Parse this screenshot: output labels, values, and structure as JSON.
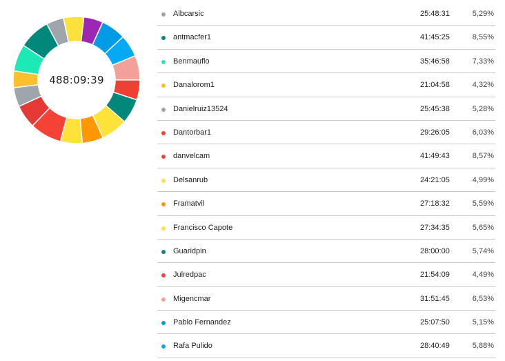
{
  "donut": {
    "center_label": "488:09:39"
  },
  "chart_data": {
    "type": "pie",
    "categories": [
      "Albcarsic",
      "antmacfer1",
      "Benmauflo",
      "Danalorom1",
      "Danielruiz13524",
      "Dantorbar1",
      "danvelcam",
      "Delsanrub",
      "Framatvil",
      "Francisco Capote",
      "Guaridpin",
      "Julredpac",
      "Migencmar",
      "Pablo Fernandez",
      "Rafa Pulido"
    ],
    "values": [
      5.29,
      8.55,
      7.33,
      4.32,
      5.28,
      6.03,
      8.57,
      4.99,
      5.59,
      5.65,
      5.74,
      4.49,
      6.53,
      5.15,
      5.88
    ]
  },
  "segments": [
    {
      "color": "#fbe13a",
      "percent": 5.5
    },
    {
      "color": "#9c27b0",
      "percent": 5.2
    },
    {
      "color": "#039be5",
      "percent": 6.7
    },
    {
      "color": "#03a9f4",
      "percent": 6.0
    },
    {
      "color": "#f4a09a",
      "percent": 6.6
    },
    {
      "color": "#ef4034",
      "percent": 5.4
    },
    {
      "color": "#00897b",
      "percent": 6.7
    },
    {
      "color": "#fde23a",
      "percent": 7.2
    },
    {
      "color": "#ff9800",
      "percent": 5.7
    },
    {
      "color": "#fde23a",
      "percent": 5.9
    },
    {
      "color": "#f44336",
      "percent": 8.6
    },
    {
      "color": "#e53935",
      "percent": 6.3
    },
    {
      "color": "#9ea6ab",
      "percent": 5.2
    },
    {
      "color": "#fbc02d",
      "percent": 4.5
    },
    {
      "color": "#1de9b6",
      "percent": 7.3
    },
    {
      "color": "#00897b",
      "percent": 8.5
    },
    {
      "color": "#9ea6ab",
      "percent": 4.7
    }
  ],
  "rows": [
    {
      "name": "Albcarsic",
      "time": "25:48:31",
      "percent": "5,29%",
      "color": "#9aa4aa"
    },
    {
      "name": "antmacfer1",
      "time": "41:45:25",
      "percent": "8,55%",
      "color": "#00897b"
    },
    {
      "name": "Benmauflo",
      "time": "35:46:58",
      "percent": "7,33%",
      "color": "#1de9b6"
    },
    {
      "name": "Danalorom1",
      "time": "21:04:58",
      "percent": "4,32%",
      "color": "#fbc02d"
    },
    {
      "name": "Danielruiz13524",
      "time": "25:45:38",
      "percent": "5,28%",
      "color": "#9aa4aa"
    },
    {
      "name": "Dantorbar1",
      "time": "29:26:05",
      "percent": "6,03%",
      "color": "#f44336"
    },
    {
      "name": "danvelcam",
      "time": "41:49:43",
      "percent": "8,57%",
      "color": "#f44336"
    },
    {
      "name": "Delsanrub",
      "time": "24:21:05",
      "percent": "4,99%",
      "color": "#fde23a"
    },
    {
      "name": "Framatvil",
      "time": "27:18:32",
      "percent": "5,59%",
      "color": "#ff9800"
    },
    {
      "name": "Francisco Capote",
      "time": "27:34:35",
      "percent": "5,65%",
      "color": "#fde23a"
    },
    {
      "name": "Guaridpin",
      "time": "28:00:00",
      "percent": "5,74%",
      "color": "#00897b"
    },
    {
      "name": "Julredpac",
      "time": "21:54:09",
      "percent": "4,49%",
      "color": "#f44336"
    },
    {
      "name": "Migencmar",
      "time": "31:51:45",
      "percent": "6,53%",
      "color": "#f4a09a"
    },
    {
      "name": "Pablo Fernandez",
      "time": "25:07:50",
      "percent": "5,15%",
      "color": "#039be5"
    },
    {
      "name": "Rafa Pulido",
      "time": "28:40:49",
      "percent": "5,88%",
      "color": "#03a9f4"
    }
  ]
}
